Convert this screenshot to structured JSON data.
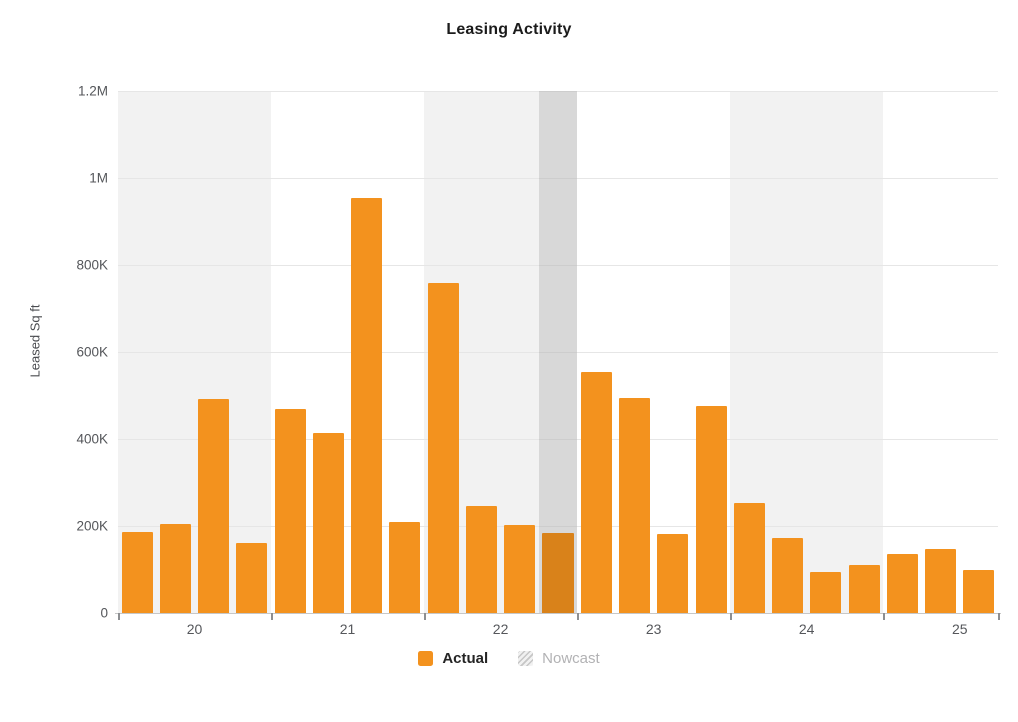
{
  "chart_data": {
    "type": "bar",
    "title": "Leasing Activity",
    "xlabel": "",
    "ylabel": "Leased Sq ft",
    "ylim": [
      0,
      1200000
    ],
    "ytick_values": [
      0,
      200000,
      400000,
      600000,
      800000,
      1000000,
      1200000
    ],
    "ytick_labels": [
      "0",
      "200K",
      "400K",
      "600K",
      "800K",
      "1M",
      "1.2M"
    ],
    "xtick_year_labels": [
      "20",
      "21",
      "22",
      "23",
      "24",
      "25"
    ],
    "x": [
      "2020 Q1",
      "2020 Q2",
      "2020 Q3",
      "2020 Q4",
      "2021 Q1",
      "2021 Q2",
      "2021 Q3",
      "2021 Q4",
      "2022 Q1",
      "2022 Q2",
      "2022 Q3",
      "2022 Q4",
      "2023 Q1",
      "2023 Q2",
      "2023 Q3",
      "2023 Q4",
      "2024 Q1",
      "2024 Q2",
      "2024 Q3",
      "2024 Q4",
      "2025 Q1",
      "2025 Q2",
      "2025 Q3"
    ],
    "values": [
      186000,
      204000,
      493000,
      160000,
      469000,
      414000,
      954000,
      209000,
      758000,
      247000,
      203000,
      184000,
      553000,
      494000,
      182000,
      477000,
      254000,
      172000,
      95000,
      110000,
      136000,
      146000,
      99000
    ],
    "series_name": "Actual",
    "nowcast_quarter": "2022 Q4",
    "nowcast_index": 11,
    "legend": [
      "Actual",
      "Nowcast"
    ],
    "legend_position": "bottom",
    "grid": true,
    "colors": {
      "bar": "#F3921E",
      "band_gray": "#F2F2F2",
      "band_white": "#FFFFFF",
      "nowcast_overlay": "rgba(0,0,0,0.105)",
      "gridline": "#E6E6E6"
    }
  }
}
